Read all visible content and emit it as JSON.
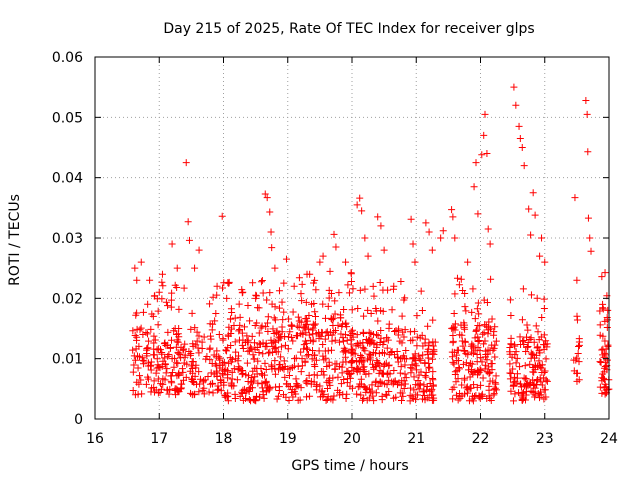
{
  "chart_data": {
    "type": "scatter",
    "title": "Day 215 of 2025, Rate Of TEC Index for receiver glps",
    "xlabel": "GPS time / hours",
    "ylabel": "ROTI / TECUs",
    "xlim": [
      16,
      24
    ],
    "ylim": [
      0,
      0.06
    ],
    "x_ticks": [
      16,
      17,
      18,
      19,
      20,
      21,
      22,
      23,
      24
    ],
    "x_tick_labels": [
      "16",
      "17",
      "18",
      "19",
      "20",
      "21",
      "22",
      "23",
      "24"
    ],
    "y_ticks": [
      0,
      0.01,
      0.02,
      0.03,
      0.04,
      0.05,
      0.06
    ],
    "y_tick_labels": [
      "0",
      "0.01",
      "0.02",
      "0.03",
      "0.04",
      "0.05",
      "0.06"
    ],
    "grid": true,
    "marker": "plus",
    "color": "#ff0000",
    "series": [
      {
        "name": "ROTI",
        "summary": "dense band mostly between 0.003 and 0.015 TECU/s, sparse excursions up to ~0.055",
        "clusters": [
          {
            "x_range": [
              16.58,
              17.95
            ],
            "base": [
              0.004,
              0.015
            ],
            "n": 230
          },
          {
            "x_range": [
              17.95,
              18.9
            ],
            "base": [
              0.003,
              0.016
            ],
            "n": 200
          },
          {
            "x_range": [
              18.9,
              20.0
            ],
            "base": [
              0.003,
              0.017
            ],
            "n": 230
          },
          {
            "x_range": [
              20.0,
              20.85
            ],
            "base": [
              0.003,
              0.015
            ],
            "n": 190
          },
          {
            "x_range": [
              20.9,
              21.3
            ],
            "base": [
              0.003,
              0.014
            ],
            "n": 90
          },
          {
            "x_range": [
              21.55,
              22.25
            ],
            "base": [
              0.003,
              0.016
            ],
            "n": 170
          },
          {
            "x_range": [
              22.45,
              23.05
            ],
            "base": [
              0.003,
              0.014
            ],
            "n": 140
          },
          {
            "x_range": [
              23.45,
              23.55
            ],
            "base": [
              0.006,
              0.014
            ],
            "n": 14
          },
          {
            "x_range": [
              23.85,
              24.0
            ],
            "base": [
              0.004,
              0.017
            ],
            "n": 45
          }
        ],
        "spikes": [
          [
            16.62,
            0.025
          ],
          [
            16.65,
            0.023
          ],
          [
            16.72,
            0.026
          ],
          [
            16.85,
            0.023
          ],
          [
            17.0,
            0.021
          ],
          [
            17.05,
            0.024
          ],
          [
            17.2,
            0.029
          ],
          [
            17.28,
            0.025
          ],
          [
            17.42,
            0.0425
          ],
          [
            17.45,
            0.0327
          ],
          [
            17.47,
            0.0296
          ],
          [
            17.55,
            0.025
          ],
          [
            17.62,
            0.028
          ],
          [
            17.9,
            0.022
          ],
          [
            17.98,
            0.0336
          ],
          [
            18.05,
            0.02
          ],
          [
            18.3,
            0.021
          ],
          [
            18.5,
            0.02
          ],
          [
            18.65,
            0.0373
          ],
          [
            18.68,
            0.0367
          ],
          [
            18.72,
            0.0343
          ],
          [
            18.74,
            0.031
          ],
          [
            18.75,
            0.0284
          ],
          [
            18.8,
            0.025
          ],
          [
            18.98,
            0.0265
          ],
          [
            19.1,
            0.022
          ],
          [
            19.3,
            0.024
          ],
          [
            19.5,
            0.026
          ],
          [
            19.55,
            0.027
          ],
          [
            19.72,
            0.0306
          ],
          [
            19.75,
            0.0285
          ],
          [
            19.9,
            0.026
          ],
          [
            20.08,
            0.0355
          ],
          [
            20.12,
            0.0366
          ],
          [
            20.15,
            0.0345
          ],
          [
            20.2,
            0.03
          ],
          [
            20.25,
            0.027
          ],
          [
            20.4,
            0.0335
          ],
          [
            20.45,
            0.032
          ],
          [
            20.5,
            0.028
          ],
          [
            20.65,
            0.022
          ],
          [
            20.92,
            0.0331
          ],
          [
            20.95,
            0.029
          ],
          [
            20.98,
            0.026
          ],
          [
            21.15,
            0.0325
          ],
          [
            21.2,
            0.031
          ],
          [
            21.25,
            0.028
          ],
          [
            21.38,
            0.03
          ],
          [
            21.42,
            0.0312
          ],
          [
            21.55,
            0.0347
          ],
          [
            21.57,
            0.0335
          ],
          [
            21.6,
            0.03
          ],
          [
            21.8,
            0.026
          ],
          [
            21.9,
            0.0385
          ],
          [
            21.93,
            0.0425
          ],
          [
            21.96,
            0.034
          ],
          [
            22.02,
            0.0438
          ],
          [
            22.05,
            0.047
          ],
          [
            22.07,
            0.0505
          ],
          [
            22.1,
            0.044
          ],
          [
            22.12,
            0.0315
          ],
          [
            22.15,
            0.029
          ],
          [
            22.52,
            0.055
          ],
          [
            22.55,
            0.052
          ],
          [
            22.6,
            0.0485
          ],
          [
            22.62,
            0.0465
          ],
          [
            22.65,
            0.045
          ],
          [
            22.68,
            0.042
          ],
          [
            22.75,
            0.0348
          ],
          [
            22.78,
            0.0305
          ],
          [
            22.82,
            0.0375
          ],
          [
            22.85,
            0.0338
          ],
          [
            22.92,
            0.027
          ],
          [
            22.95,
            0.03
          ],
          [
            23.0,
            0.026
          ],
          [
            23.47,
            0.0367
          ],
          [
            23.5,
            0.023
          ],
          [
            23.64,
            0.0528
          ],
          [
            23.66,
            0.0505
          ],
          [
            23.67,
            0.0443
          ],
          [
            23.68,
            0.0333
          ],
          [
            23.7,
            0.03
          ],
          [
            23.72,
            0.0278
          ],
          [
            23.9,
            0.019
          ],
          [
            23.98,
            0.018
          ]
        ]
      }
    ]
  }
}
